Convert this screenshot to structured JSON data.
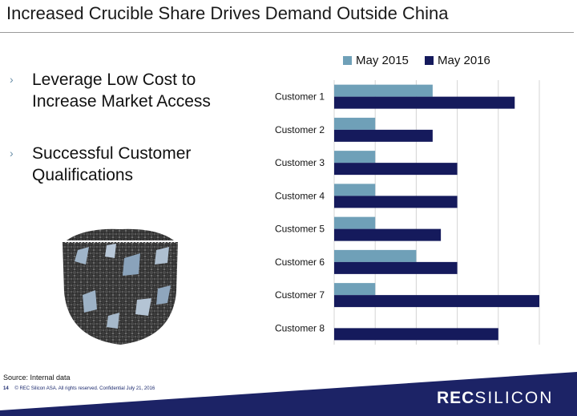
{
  "title": "Increased Crucible Share Drives Demand Outside China",
  "bullets": [
    {
      "marker": "›",
      "text": "Leverage Low Cost to Increase Market Access"
    },
    {
      "marker": "›",
      "text": "Successful Customer Qualifications"
    }
  ],
  "colors": {
    "may2015": "#6fa0b8",
    "may2016": "#151a5c",
    "grid": "#d4d4d4",
    "footer_band": "#1c2366"
  },
  "chart_data": {
    "type": "bar",
    "orientation": "horizontal",
    "categories": [
      "Customer 1",
      "Customer 2",
      "Customer 3",
      "Customer 4",
      "Customer 5",
      "Customer 6",
      "Customer 7",
      "Customer 8"
    ],
    "series": [
      {
        "name": "May 2015",
        "values": [
          24,
          10,
          10,
          10,
          10,
          20,
          10,
          0
        ]
      },
      {
        "name": "May 2016",
        "values": [
          44,
          24,
          30,
          30,
          26,
          30,
          50,
          40
        ]
      }
    ],
    "xlim": [
      0,
      50
    ],
    "grid": true,
    "legend": "top"
  },
  "footer": {
    "source": "Source: Internal data",
    "page": "14",
    "copyright": "© REC Silicon ASA. All rights reserved. Confidential  July 21, 2016"
  },
  "logo": {
    "part1": "REC",
    "part2": "SILICON"
  }
}
